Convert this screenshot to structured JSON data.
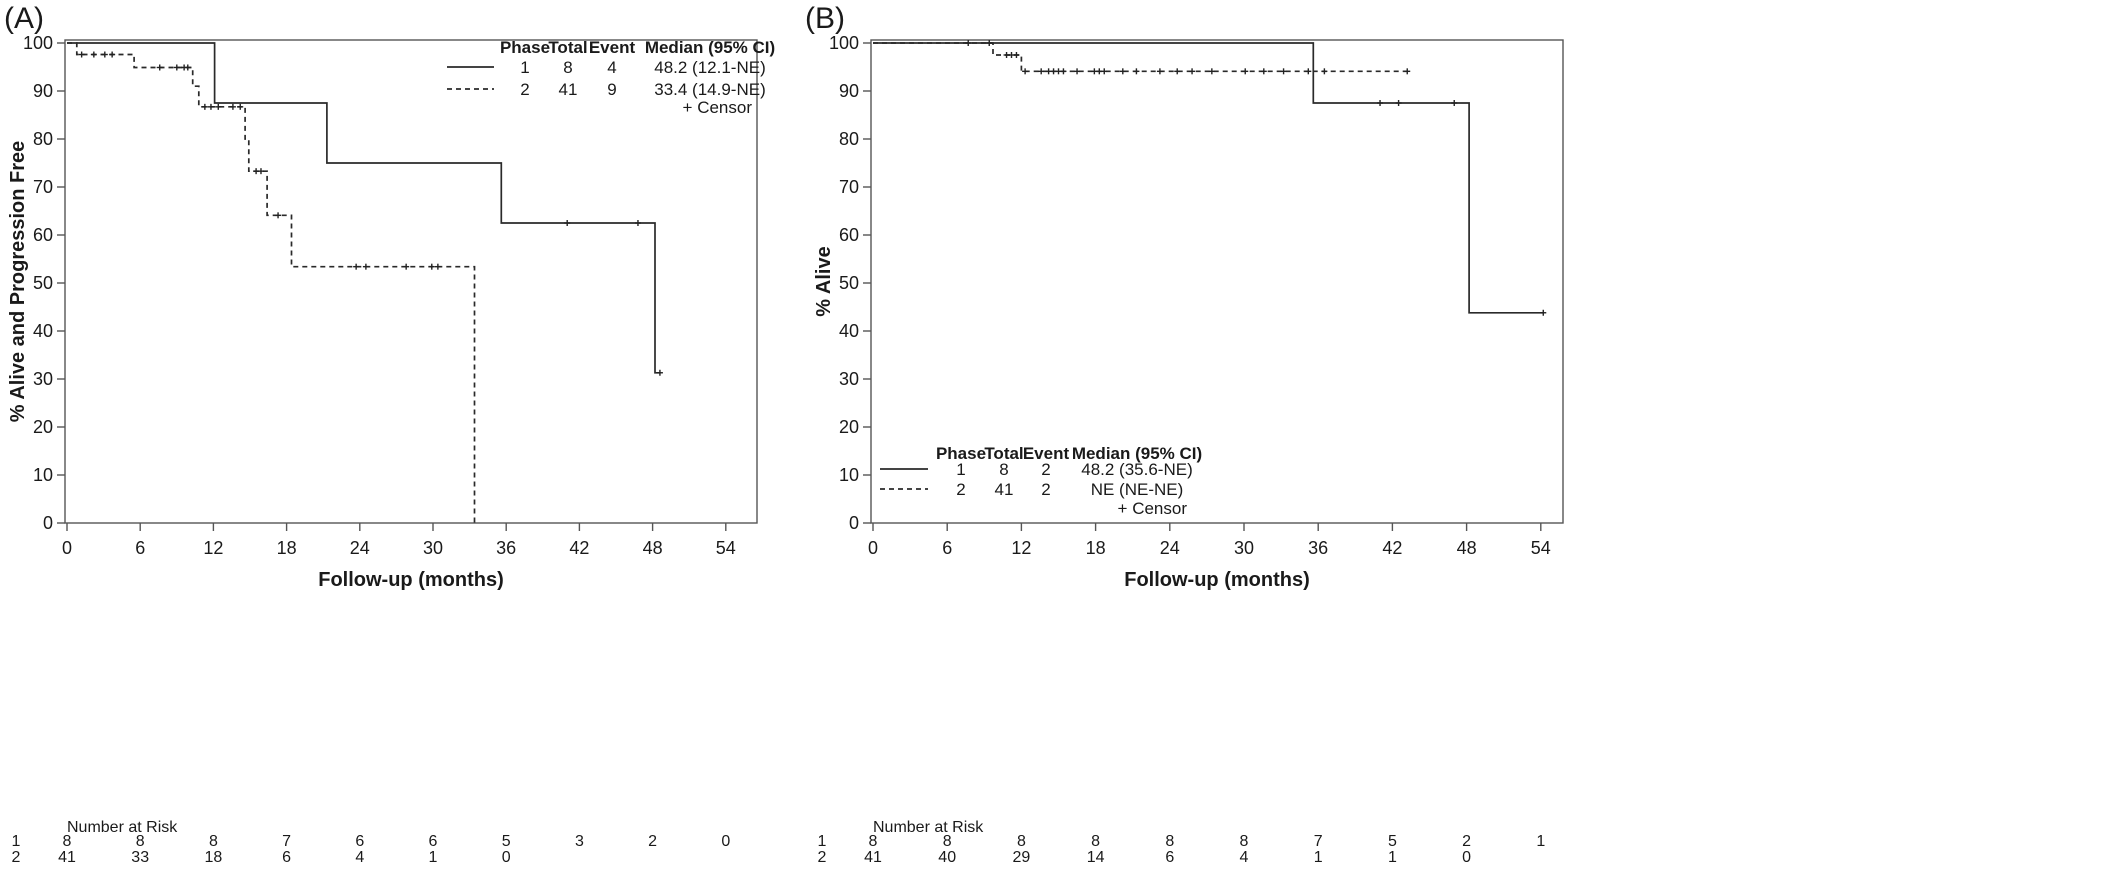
{
  "chart_data": [
    {
      "panel_label": "(A)",
      "type": "line",
      "step": true,
      "xlabel": "Follow-up (months)",
      "ylabel": "% Alive and Progression Free",
      "xlim": [
        0,
        54
      ],
      "ylim": [
        0,
        100
      ],
      "xticks": [
        0,
        6,
        12,
        18,
        24,
        30,
        36,
        42,
        48,
        54
      ],
      "yticks": [
        0,
        10,
        20,
        30,
        40,
        50,
        60,
        70,
        80,
        90,
        100
      ],
      "legend_placement": "top-right",
      "legend": {
        "headers": [
          "Phase",
          "Total",
          "Event",
          "Median (95% CI)"
        ],
        "rows": [
          {
            "phase": "1",
            "total": "8",
            "event": "4",
            "median": "48.2 (12.1-NE)",
            "line": "solid"
          },
          {
            "phase": "2",
            "total": "41",
            "event": "9",
            "median": "33.4 (14.9-NE)",
            "line": "dashed"
          }
        ],
        "censor_label": "+ Censor"
      },
      "series": [
        {
          "phase": "1",
          "line": "solid",
          "points": [
            [
              0,
              100
            ],
            [
              12.1,
              100
            ],
            [
              12.1,
              87.5
            ],
            [
              21.3,
              87.5
            ],
            [
              21.3,
              75
            ],
            [
              35.6,
              75
            ],
            [
              35.6,
              62.5
            ],
            [
              48.2,
              62.5
            ],
            [
              48.2,
              31.3
            ],
            [
              48.6,
              31.3
            ]
          ],
          "censored": [
            [
              41.0,
              62.5
            ],
            [
              46.8,
              62.5
            ],
            [
              48.6,
              31.3
            ]
          ]
        },
        {
          "phase": "2",
          "line": "dashed",
          "points": [
            [
              0,
              100
            ],
            [
              0.8,
              100
            ],
            [
              0.8,
              97.6
            ],
            [
              5.5,
              97.6
            ],
            [
              5.5,
              94.9
            ],
            [
              10.3,
              94.9
            ],
            [
              10.3,
              91.0
            ],
            [
              10.8,
              91.0
            ],
            [
              10.8,
              86.7
            ],
            [
              14.6,
              86.7
            ],
            [
              14.6,
              80.0
            ],
            [
              14.9,
              80.0
            ],
            [
              14.9,
              73.3
            ],
            [
              16.4,
              73.3
            ],
            [
              16.4,
              64.1
            ],
            [
              18.4,
              64.1
            ],
            [
              18.4,
              53.4
            ],
            [
              33.4,
              53.4
            ],
            [
              33.4,
              0
            ]
          ],
          "censored": [
            [
              1.2,
              97.6
            ],
            [
              2.2,
              97.6
            ],
            [
              3.1,
              97.6
            ],
            [
              3.7,
              97.6
            ],
            [
              7.6,
              94.9
            ],
            [
              9.0,
              94.9
            ],
            [
              9.6,
              94.9
            ],
            [
              9.9,
              94.9
            ],
            [
              11.3,
              86.7
            ],
            [
              11.8,
              86.7
            ],
            [
              12.4,
              86.7
            ],
            [
              13.6,
              86.7
            ],
            [
              14.2,
              86.7
            ],
            [
              15.5,
              73.3
            ],
            [
              15.9,
              73.3
            ],
            [
              17.3,
              64.1
            ],
            [
              23.7,
              53.4
            ],
            [
              24.5,
              53.4
            ],
            [
              27.8,
              53.4
            ],
            [
              29.9,
              53.4
            ],
            [
              30.4,
              53.4
            ]
          ]
        }
      ],
      "number_at_risk": {
        "title": "Number at Risk",
        "x": [
          0,
          6,
          12,
          18,
          24,
          30,
          36,
          42,
          48,
          54
        ],
        "rows": [
          {
            "label": "1",
            "values": [
              "8",
              "8",
              "8",
              "7",
              "6",
              "6",
              "5",
              "3",
              "2",
              "0"
            ]
          },
          {
            "label": "2",
            "values": [
              "41",
              "33",
              "18",
              "6",
              "4",
              "1",
              "0",
              "",
              "",
              ""
            ]
          }
        ]
      }
    },
    {
      "panel_label": "(B)",
      "type": "line",
      "step": true,
      "xlabel": "Follow-up (months)",
      "ylabel": "% Alive",
      "xlim": [
        0,
        54
      ],
      "ylim": [
        0,
        100
      ],
      "xticks": [
        0,
        6,
        12,
        18,
        24,
        30,
        36,
        42,
        48,
        54
      ],
      "yticks": [
        0,
        10,
        20,
        30,
        40,
        50,
        60,
        70,
        80,
        90,
        100
      ],
      "legend_placement": "bottom-left",
      "legend": {
        "headers": [
          "Phase",
          "Total",
          "Event",
          "Median (95% CI)"
        ],
        "rows": [
          {
            "phase": "1",
            "total": "8",
            "event": "2",
            "median": "48.2 (35.6-NE)",
            "line": "solid"
          },
          {
            "phase": "2",
            "total": "41",
            "event": "2",
            "median": "NE (NE-NE)",
            "line": "dashed"
          }
        ],
        "censor_label": "+ Censor"
      },
      "series": [
        {
          "phase": "1",
          "line": "solid",
          "points": [
            [
              0,
              100
            ],
            [
              35.6,
              100
            ],
            [
              35.6,
              87.5
            ],
            [
              48.2,
              87.5
            ],
            [
              48.2,
              43.8
            ],
            [
              54.2,
              43.8
            ]
          ],
          "censored": [
            [
              41.0,
              87.5
            ],
            [
              42.5,
              87.5
            ],
            [
              47.0,
              87.5
            ],
            [
              54.2,
              43.8
            ]
          ]
        },
        {
          "phase": "2",
          "line": "dashed",
          "points": [
            [
              0,
              100
            ],
            [
              9.7,
              100
            ],
            [
              9.7,
              97.5
            ],
            [
              12.0,
              97.5
            ],
            [
              12.0,
              94.1
            ],
            [
              43.2,
              94.1
            ]
          ],
          "censored": [
            [
              7.7,
              100
            ],
            [
              9.4,
              100
            ],
            [
              10.8,
              97.5
            ],
            [
              11.2,
              97.5
            ],
            [
              11.6,
              97.5
            ],
            [
              12.3,
              94.1
            ],
            [
              13.6,
              94.1
            ],
            [
              14.2,
              94.1
            ],
            [
              14.6,
              94.1
            ],
            [
              15.0,
              94.1
            ],
            [
              15.4,
              94.1
            ],
            [
              16.5,
              94.1
            ],
            [
              17.9,
              94.1
            ],
            [
              18.3,
              94.1
            ],
            [
              18.7,
              94.1
            ],
            [
              20.2,
              94.1
            ],
            [
              21.3,
              94.1
            ],
            [
              23.2,
              94.1
            ],
            [
              24.6,
              94.1
            ],
            [
              25.8,
              94.1
            ],
            [
              27.4,
              94.1
            ],
            [
              30.1,
              94.1
            ],
            [
              31.6,
              94.1
            ],
            [
              33.2,
              94.1
            ],
            [
              35.2,
              94.1
            ],
            [
              36.5,
              94.1
            ],
            [
              43.2,
              94.1
            ]
          ]
        }
      ],
      "number_at_risk": {
        "title": "Number at Risk",
        "x": [
          0,
          6,
          12,
          18,
          24,
          30,
          36,
          42,
          48,
          54
        ],
        "rows": [
          {
            "label": "1",
            "values": [
              "8",
              "8",
              "8",
              "8",
              "8",
              "8",
              "7",
              "5",
              "2",
              "1"
            ]
          },
          {
            "label": "2",
            "values": [
              "41",
              "40",
              "29",
              "14",
              "6",
              "4",
              "1",
              "1",
              "0",
              ""
            ]
          }
        ]
      }
    }
  ]
}
